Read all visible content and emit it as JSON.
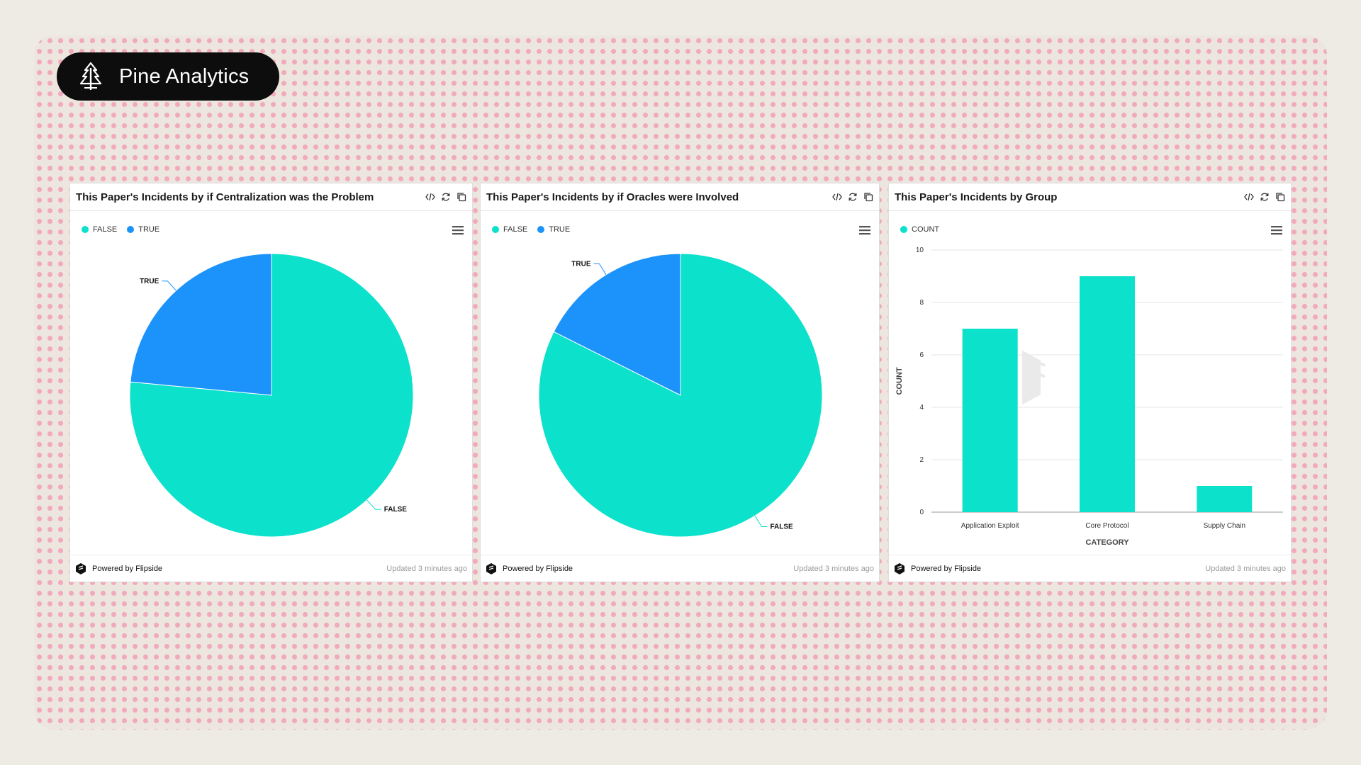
{
  "brand": {
    "name": "Pine Analytics"
  },
  "panels": [
    {
      "title": "This Paper's Incidents by if Centralization was the Problem",
      "footer": {
        "powered": "Powered by Flipside",
        "updated": "Updated 3 minutes ago"
      }
    },
    {
      "title": "This Paper's Incidents by if Oracles were Involved",
      "footer": {
        "powered": "Powered by Flipside",
        "updated": "Updated 3 minutes ago"
      }
    },
    {
      "title": "This Paper's Incidents by Group",
      "footer": {
        "powered": "Powered by Flipside",
        "updated": "Updated 3 minutes ago"
      }
    }
  ],
  "colors": {
    "false": "#0ce1cb",
    "true": "#1b93fb",
    "count": "#0ce1cb"
  },
  "chart_data": [
    {
      "type": "pie",
      "title": "This Paper's Incidents by if Centralization was the Problem",
      "legend": [
        "FALSE",
        "TRUE"
      ],
      "slices": [
        {
          "label": "FALSE",
          "value": 76.5
        },
        {
          "label": "TRUE",
          "value": 23.5
        }
      ],
      "legend_position": "top-left"
    },
    {
      "type": "pie",
      "title": "This Paper's Incidents by if Oracles were Involved",
      "legend": [
        "FALSE",
        "TRUE"
      ],
      "slices": [
        {
          "label": "FALSE",
          "value": 82.4
        },
        {
          "label": "TRUE",
          "value": 17.6
        }
      ],
      "legend_position": "top-left"
    },
    {
      "type": "bar",
      "title": "This Paper's Incidents by Group",
      "legend": [
        "COUNT"
      ],
      "categories": [
        "Application Exploit",
        "Core Protocol",
        "Supply Chain"
      ],
      "series": [
        {
          "name": "COUNT",
          "values": [
            7,
            9,
            1
          ]
        }
      ],
      "xlabel": "CATEGORY",
      "ylabel": "COUNT",
      "ylim": [
        0,
        10
      ],
      "yticks": [
        "0",
        "2",
        "4",
        "6",
        "8",
        "10"
      ],
      "grid": true,
      "legend_position": "top-left"
    }
  ]
}
